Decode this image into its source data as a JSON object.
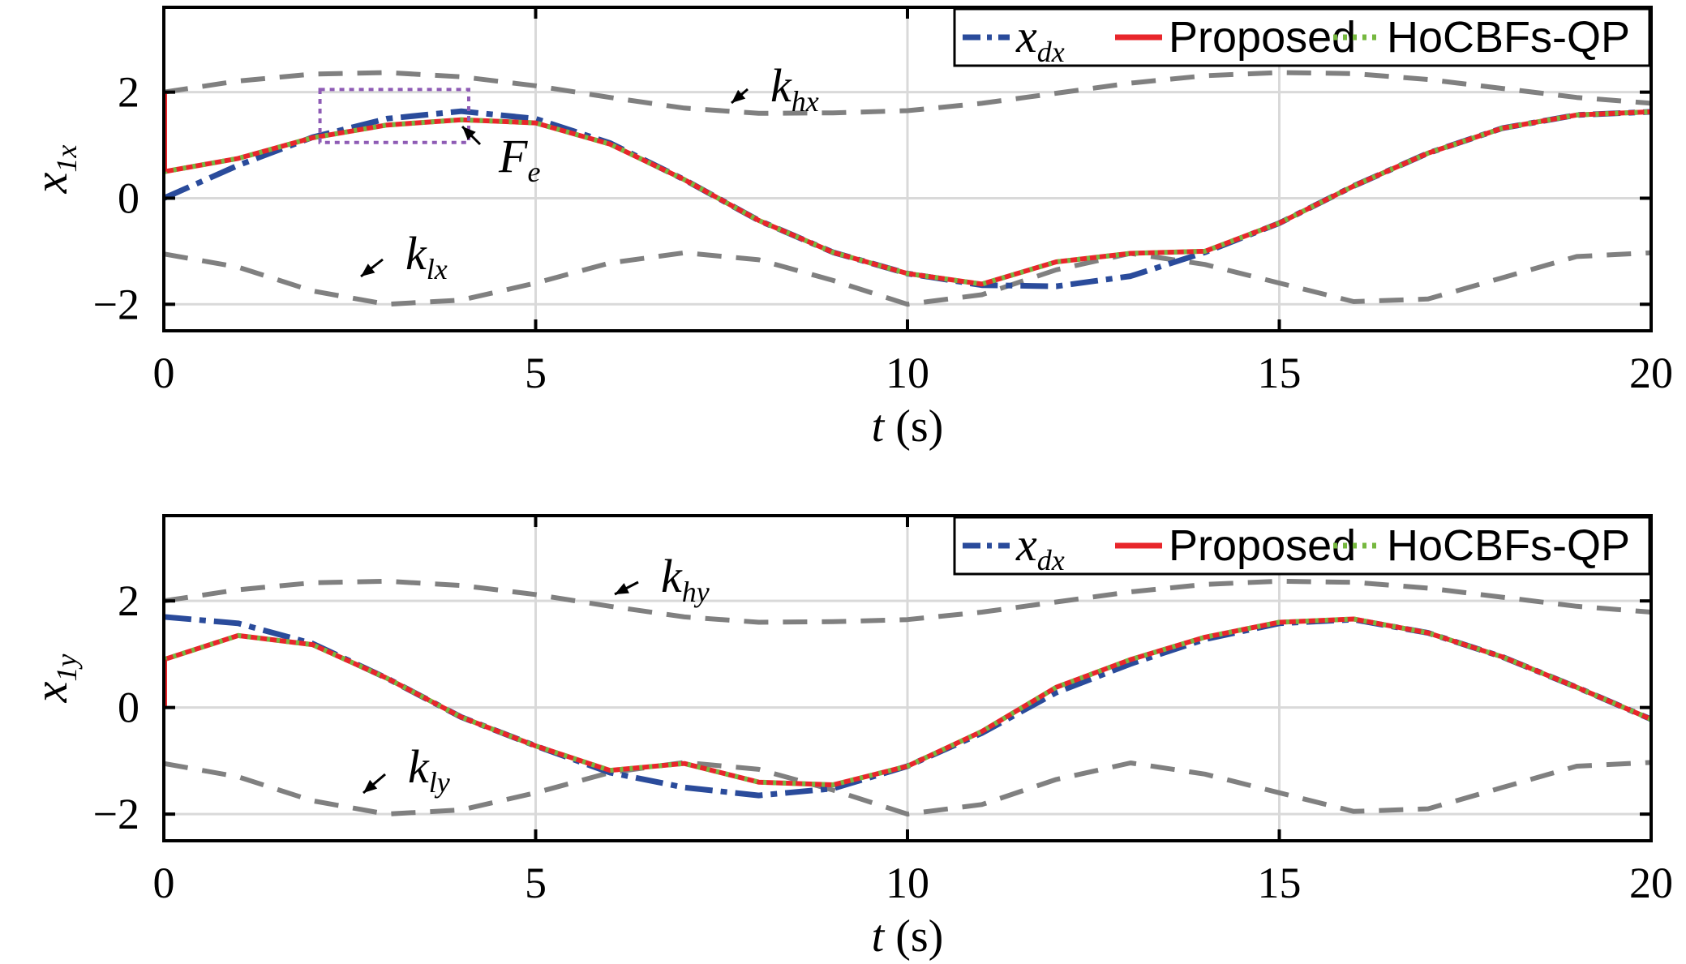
{
  "chart_data": [
    {
      "type": "line",
      "xlabel": {
        "var": "t",
        "unit": " (s)"
      },
      "ylabel": {
        "base": "x",
        "sub": "1x"
      },
      "xlim": [
        0,
        20
      ],
      "ylim": [
        -2.5,
        3.6
      ],
      "xticks": [
        0,
        5,
        10,
        15,
        20
      ],
      "xtick_labels": [
        "0",
        "5",
        "10",
        "15",
        "20"
      ],
      "yticks": [
        -2,
        0,
        2
      ],
      "ytick_labels": [
        "−2",
        "0",
        "2"
      ],
      "grid": true,
      "legend_position": "top-right",
      "legend": [
        {
          "base": "x",
          "sub": "dx",
          "style": "dashdot",
          "color": "#2A4B9B"
        },
        {
          "label": "Proposed",
          "style": "solid",
          "color": "#E8262B"
        },
        {
          "label": "HoCBFs-QP",
          "style": "dotted",
          "color": "#76B83F"
        }
      ],
      "colors": {
        "reference": "#2A4B9B",
        "proposed": "#E8262B",
        "hocbf": "#76B83F",
        "bounds": "#808080"
      },
      "x": [
        0,
        1,
        2,
        3,
        4,
        5,
        6,
        7,
        8,
        9,
        10,
        11,
        12,
        13,
        14,
        15,
        16,
        17,
        18,
        19,
        20
      ],
      "series": [
        {
          "key": "kh",
          "values": [
            2.0,
            2.21,
            2.34,
            2.37,
            2.29,
            2.12,
            1.9,
            1.7,
            1.6,
            1.61,
            1.65,
            1.79,
            1.98,
            2.17,
            2.31,
            2.37,
            2.35,
            2.24,
            2.07,
            1.9,
            1.79
          ]
        },
        {
          "key": "kl",
          "values": [
            -1.05,
            -1.3,
            -1.75,
            -2.0,
            -1.92,
            -1.6,
            -1.22,
            -1.03,
            -1.16,
            -1.55,
            -2.0,
            -1.82,
            -1.35,
            -1.04,
            -1.25,
            -1.6,
            -1.95,
            -1.9,
            -1.5,
            -1.1,
            -1.03
          ]
        },
        {
          "key": "ref",
          "values": [
            0.0,
            0.62,
            1.15,
            1.5,
            1.64,
            1.5,
            1.04,
            0.35,
            -0.42,
            -1.02,
            -1.42,
            -1.64,
            -1.66,
            -1.47,
            -1.02,
            -0.47,
            0.23,
            0.85,
            1.32,
            1.57,
            1.63
          ]
        },
        {
          "key": "prop",
          "values": [
            0.5,
            0.75,
            1.14,
            1.38,
            1.48,
            1.42,
            1.02,
            0.35,
            -0.42,
            -1.02,
            -1.42,
            -1.62,
            -1.2,
            -1.04,
            -1.0,
            -0.47,
            0.23,
            0.85,
            1.32,
            1.57,
            1.63
          ]
        },
        {
          "key": "hocbf",
          "values": [
            0.5,
            0.75,
            1.14,
            1.38,
            1.48,
            1.42,
            1.02,
            0.35,
            -0.42,
            -1.02,
            -1.42,
            -1.62,
            -1.2,
            -1.04,
            -1.0,
            -0.47,
            0.23,
            0.85,
            1.32,
            1.57,
            1.63
          ]
        }
      ],
      "annotations": [
        {
          "base": "k",
          "sub": "hx"
        },
        {
          "base": "k",
          "sub": "lx"
        },
        {
          "base": "F",
          "sub": "e"
        }
      ],
      "inset_box": {
        "x": [
          2.1,
          4.1
        ],
        "y": [
          1.05,
          2.05
        ]
      }
    },
    {
      "type": "line",
      "xlabel": {
        "var": "t",
        "unit": " (s)"
      },
      "ylabel": {
        "base": "x",
        "sub": "1y"
      },
      "xlim": [
        0,
        20
      ],
      "ylim": [
        -2.5,
        3.6
      ],
      "xticks": [
        0,
        5,
        10,
        15,
        20
      ],
      "xtick_labels": [
        "0",
        "5",
        "10",
        "15",
        "20"
      ],
      "yticks": [
        -2,
        0,
        2
      ],
      "ytick_labels": [
        "−2",
        "0",
        "2"
      ],
      "grid": true,
      "legend_position": "top-right",
      "legend": [
        {
          "base": "x",
          "sub": "dx",
          "style": "dashdot",
          "color": "#2A4B9B"
        },
        {
          "label": "Proposed",
          "style": "solid",
          "color": "#E8262B"
        },
        {
          "label": "HoCBFs-QP",
          "style": "dotted",
          "color": "#76B83F"
        }
      ],
      "colors": {
        "reference": "#2A4B9B",
        "proposed": "#E8262B",
        "hocbf": "#76B83F",
        "bounds": "#808080"
      },
      "x": [
        0,
        1,
        2,
        3,
        4,
        5,
        6,
        7,
        8,
        9,
        10,
        11,
        12,
        13,
        14,
        15,
        16,
        17,
        18,
        19,
        20
      ],
      "series": [
        {
          "key": "kh",
          "values": [
            2.0,
            2.21,
            2.34,
            2.37,
            2.29,
            2.12,
            1.9,
            1.7,
            1.6,
            1.61,
            1.65,
            1.79,
            1.98,
            2.17,
            2.31,
            2.37,
            2.35,
            2.24,
            2.07,
            1.9,
            1.79
          ]
        },
        {
          "key": "kl",
          "values": [
            -1.05,
            -1.3,
            -1.75,
            -2.0,
            -1.92,
            -1.6,
            -1.22,
            -1.03,
            -1.16,
            -1.55,
            -2.0,
            -1.82,
            -1.35,
            -1.04,
            -1.25,
            -1.6,
            -1.95,
            -1.9,
            -1.5,
            -1.1,
            -1.03
          ]
        },
        {
          "key": "ref",
          "values": [
            1.7,
            1.58,
            1.2,
            0.55,
            -0.18,
            -0.72,
            -1.22,
            -1.5,
            -1.65,
            -1.52,
            -1.1,
            -0.48,
            0.28,
            0.82,
            1.28,
            1.58,
            1.65,
            1.4,
            0.95,
            0.38,
            -0.22
          ]
        },
        {
          "key": "prop",
          "values": [
            0.9,
            1.35,
            1.18,
            0.55,
            -0.18,
            -0.72,
            -1.18,
            -1.05,
            -1.4,
            -1.45,
            -1.1,
            -0.45,
            0.38,
            0.9,
            1.32,
            1.6,
            1.66,
            1.4,
            0.95,
            0.38,
            -0.22
          ]
        },
        {
          "key": "hocbf",
          "values": [
            0.9,
            1.35,
            1.18,
            0.55,
            -0.18,
            -0.72,
            -1.18,
            -1.05,
            -1.4,
            -1.45,
            -1.1,
            -0.45,
            0.38,
            0.9,
            1.32,
            1.6,
            1.66,
            1.4,
            0.95,
            0.38,
            -0.22
          ]
        }
      ],
      "annotations": [
        {
          "base": "k",
          "sub": "hy"
        },
        {
          "base": "k",
          "sub": "ly"
        }
      ]
    }
  ]
}
